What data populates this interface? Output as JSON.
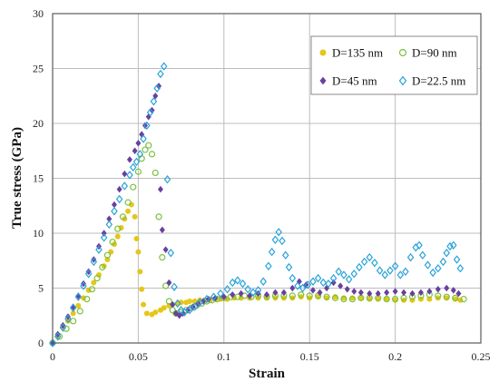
{
  "chart_data": {
    "type": "scatter",
    "xlabel": "Strain",
    "ylabel": "True stress (GPa)",
    "xlim": [
      0,
      0.25
    ],
    "ylim": [
      0,
      30
    ],
    "x_ticks": [
      "0",
      "0.05",
      "0.1",
      "0.15",
      "0.2",
      "0.25"
    ],
    "y_ticks": [
      "0",
      "5",
      "10",
      "15",
      "20",
      "25",
      "30"
    ],
    "grid": true,
    "legend_position": "top-right",
    "series": [
      {
        "name": "D=135 nm",
        "marker": "filled-circle",
        "color": "#e6c619",
        "points": [
          [
            0.0,
            0.0
          ],
          [
            0.003,
            0.7
          ],
          [
            0.006,
            1.4
          ],
          [
            0.009,
            2.0
          ],
          [
            0.012,
            2.7
          ],
          [
            0.015,
            3.4
          ],
          [
            0.018,
            4.1
          ],
          [
            0.021,
            4.8
          ],
          [
            0.024,
            5.5
          ],
          [
            0.027,
            6.2
          ],
          [
            0.03,
            7.0
          ],
          [
            0.032,
            7.6
          ],
          [
            0.034,
            8.3
          ],
          [
            0.036,
            9.0
          ],
          [
            0.038,
            9.7
          ],
          [
            0.04,
            10.5
          ],
          [
            0.042,
            11.3
          ],
          [
            0.044,
            12.0
          ],
          [
            0.046,
            12.6
          ],
          [
            0.048,
            11.5
          ],
          [
            0.049,
            9.5
          ],
          [
            0.05,
            8.3
          ],
          [
            0.051,
            6.5
          ],
          [
            0.052,
            4.9
          ],
          [
            0.053,
            3.5
          ],
          [
            0.055,
            2.7
          ],
          [
            0.058,
            2.6
          ],
          [
            0.06,
            2.8
          ],
          [
            0.063,
            3.0
          ],
          [
            0.065,
            3.2
          ],
          [
            0.068,
            3.4
          ],
          [
            0.07,
            3.5
          ],
          [
            0.073,
            3.6
          ],
          [
            0.075,
            3.7
          ],
          [
            0.078,
            3.7
          ],
          [
            0.08,
            3.8
          ],
          [
            0.083,
            3.8
          ],
          [
            0.086,
            3.9
          ],
          [
            0.089,
            3.9
          ],
          [
            0.092,
            3.9
          ],
          [
            0.095,
            4.0
          ],
          [
            0.098,
            4.0
          ],
          [
            0.102,
            4.0
          ],
          [
            0.106,
            4.1
          ],
          [
            0.11,
            4.1
          ],
          [
            0.115,
            4.1
          ],
          [
            0.12,
            4.1
          ],
          [
            0.125,
            4.1
          ],
          [
            0.13,
            4.1
          ],
          [
            0.135,
            4.1
          ],
          [
            0.14,
            4.1
          ],
          [
            0.145,
            4.2
          ],
          [
            0.15,
            4.1
          ],
          [
            0.155,
            4.2
          ],
          [
            0.16,
            4.1
          ],
          [
            0.165,
            4.2
          ],
          [
            0.17,
            4.1
          ],
          [
            0.175,
            4.1
          ],
          [
            0.18,
            4.1
          ],
          [
            0.185,
            4.0
          ],
          [
            0.19,
            4.0
          ],
          [
            0.195,
            4.0
          ],
          [
            0.2,
            3.9
          ],
          [
            0.205,
            3.9
          ],
          [
            0.21,
            3.9
          ],
          [
            0.215,
            4.0
          ],
          [
            0.22,
            4.0
          ],
          [
            0.225,
            4.1
          ],
          [
            0.23,
            4.1
          ],
          [
            0.235,
            4.0
          ],
          [
            0.238,
            3.9
          ]
        ]
      },
      {
        "name": "D=90 nm",
        "marker": "open-circle",
        "color": "#7ac143",
        "points": [
          [
            0.0,
            0.0
          ],
          [
            0.004,
            0.6
          ],
          [
            0.008,
            1.3
          ],
          [
            0.012,
            2.0
          ],
          [
            0.016,
            2.9
          ],
          [
            0.02,
            4.0
          ],
          [
            0.023,
            4.9
          ],
          [
            0.026,
            5.9
          ],
          [
            0.029,
            6.9
          ],
          [
            0.032,
            8.0
          ],
          [
            0.035,
            9.2
          ],
          [
            0.038,
            10.4
          ],
          [
            0.041,
            11.5
          ],
          [
            0.044,
            12.8
          ],
          [
            0.047,
            14.2
          ],
          [
            0.05,
            15.6
          ],
          [
            0.052,
            16.8
          ],
          [
            0.054,
            17.6
          ],
          [
            0.056,
            18.0
          ],
          [
            0.058,
            17.2
          ],
          [
            0.06,
            15.5
          ],
          [
            0.062,
            11.5
          ],
          [
            0.064,
            7.8
          ],
          [
            0.066,
            5.2
          ],
          [
            0.068,
            3.8
          ],
          [
            0.07,
            3.0
          ],
          [
            0.072,
            2.7
          ],
          [
            0.075,
            2.8
          ],
          [
            0.078,
            3.0
          ],
          [
            0.081,
            3.2
          ],
          [
            0.084,
            3.4
          ],
          [
            0.087,
            3.6
          ],
          [
            0.09,
            3.8
          ],
          [
            0.093,
            3.9
          ],
          [
            0.096,
            4.0
          ],
          [
            0.1,
            4.1
          ],
          [
            0.104,
            4.2
          ],
          [
            0.108,
            4.2
          ],
          [
            0.112,
            4.3
          ],
          [
            0.116,
            4.2
          ],
          [
            0.12,
            4.3
          ],
          [
            0.125,
            4.2
          ],
          [
            0.13,
            4.3
          ],
          [
            0.135,
            4.3
          ],
          [
            0.14,
            4.3
          ],
          [
            0.145,
            4.4
          ],
          [
            0.15,
            4.3
          ],
          [
            0.155,
            4.3
          ],
          [
            0.16,
            4.2
          ],
          [
            0.165,
            4.1
          ],
          [
            0.17,
            4.0
          ],
          [
            0.175,
            4.0
          ],
          [
            0.18,
            4.1
          ],
          [
            0.185,
            4.1
          ],
          [
            0.19,
            4.1
          ],
          [
            0.195,
            4.0
          ],
          [
            0.2,
            4.0
          ],
          [
            0.205,
            4.1
          ],
          [
            0.21,
            4.2
          ],
          [
            0.215,
            4.3
          ],
          [
            0.22,
            4.4
          ],
          [
            0.225,
            4.3
          ],
          [
            0.23,
            4.2
          ],
          [
            0.235,
            4.1
          ],
          [
            0.24,
            4.0
          ]
        ]
      },
      {
        "name": "D=45 nm",
        "marker": "filled-diamond",
        "color": "#6a3fa0",
        "points": [
          [
            0.0,
            0.0
          ],
          [
            0.003,
            0.8
          ],
          [
            0.006,
            1.6
          ],
          [
            0.009,
            2.4
          ],
          [
            0.012,
            3.3
          ],
          [
            0.015,
            4.3
          ],
          [
            0.018,
            5.4
          ],
          [
            0.021,
            6.5
          ],
          [
            0.024,
            7.6
          ],
          [
            0.027,
            8.8
          ],
          [
            0.03,
            10.0
          ],
          [
            0.033,
            11.3
          ],
          [
            0.036,
            12.6
          ],
          [
            0.039,
            14.0
          ],
          [
            0.042,
            15.4
          ],
          [
            0.045,
            16.7
          ],
          [
            0.048,
            17.5
          ],
          [
            0.05,
            18.2
          ],
          [
            0.052,
            19.0
          ],
          [
            0.054,
            19.8
          ],
          [
            0.056,
            20.6
          ],
          [
            0.058,
            21.2
          ],
          [
            0.06,
            22.5
          ],
          [
            0.062,
            23.4
          ],
          [
            0.063,
            14.0
          ],
          [
            0.064,
            10.3
          ],
          [
            0.066,
            8.5
          ],
          [
            0.068,
            5.5
          ],
          [
            0.07,
            3.5
          ],
          [
            0.072,
            2.7
          ],
          [
            0.074,
            2.5
          ],
          [
            0.076,
            2.7
          ],
          [
            0.079,
            3.0
          ],
          [
            0.082,
            3.3
          ],
          [
            0.085,
            3.6
          ],
          [
            0.088,
            3.8
          ],
          [
            0.091,
            4.0
          ],
          [
            0.095,
            4.1
          ],
          [
            0.1,
            4.2
          ],
          [
            0.105,
            4.4
          ],
          [
            0.11,
            4.5
          ],
          [
            0.115,
            4.3
          ],
          [
            0.12,
            4.5
          ],
          [
            0.125,
            4.4
          ],
          [
            0.13,
            4.6
          ],
          [
            0.135,
            4.6
          ],
          [
            0.14,
            5.0
          ],
          [
            0.144,
            5.6
          ],
          [
            0.148,
            5.3
          ],
          [
            0.152,
            4.8
          ],
          [
            0.156,
            4.6
          ],
          [
            0.16,
            5.0
          ],
          [
            0.164,
            5.5
          ],
          [
            0.168,
            5.2
          ],
          [
            0.172,
            4.9
          ],
          [
            0.176,
            4.7
          ],
          [
            0.18,
            4.6
          ],
          [
            0.185,
            4.5
          ],
          [
            0.19,
            4.5
          ],
          [
            0.195,
            4.6
          ],
          [
            0.2,
            4.7
          ],
          [
            0.205,
            4.6
          ],
          [
            0.21,
            4.5
          ],
          [
            0.215,
            4.6
          ],
          [
            0.22,
            4.7
          ],
          [
            0.225,
            4.9
          ],
          [
            0.23,
            5.0
          ],
          [
            0.234,
            4.8
          ],
          [
            0.237,
            4.5
          ]
        ]
      },
      {
        "name": "D=22.5 nm",
        "marker": "open-diamond",
        "color": "#29a3d9",
        "points": [
          [
            0.0,
            0.0
          ],
          [
            0.003,
            0.6
          ],
          [
            0.006,
            1.4
          ],
          [
            0.009,
            2.2
          ],
          [
            0.012,
            3.2
          ],
          [
            0.015,
            4.2
          ],
          [
            0.018,
            5.2
          ],
          [
            0.021,
            6.3
          ],
          [
            0.024,
            7.4
          ],
          [
            0.027,
            8.5
          ],
          [
            0.03,
            9.6
          ],
          [
            0.033,
            10.8
          ],
          [
            0.036,
            12.0
          ],
          [
            0.039,
            13.1
          ],
          [
            0.042,
            14.3
          ],
          [
            0.045,
            15.3
          ],
          [
            0.047,
            16.0
          ],
          [
            0.049,
            16.5
          ],
          [
            0.051,
            17.2
          ],
          [
            0.053,
            18.6
          ],
          [
            0.055,
            19.8
          ],
          [
            0.057,
            21.0
          ],
          [
            0.059,
            22.0
          ],
          [
            0.061,
            23.2
          ],
          [
            0.063,
            24.5
          ],
          [
            0.065,
            25.2
          ],
          [
            0.067,
            14.9
          ],
          [
            0.069,
            8.2
          ],
          [
            0.071,
            5.1
          ],
          [
            0.073,
            3.6
          ],
          [
            0.075,
            3.0
          ],
          [
            0.077,
            2.8
          ],
          [
            0.08,
            3.0
          ],
          [
            0.083,
            3.3
          ],
          [
            0.086,
            3.7
          ],
          [
            0.09,
            4.0
          ],
          [
            0.094,
            4.2
          ],
          [
            0.098,
            4.5
          ],
          [
            0.102,
            4.9
          ],
          [
            0.105,
            5.5
          ],
          [
            0.108,
            5.7
          ],
          [
            0.111,
            5.4
          ],
          [
            0.114,
            4.9
          ],
          [
            0.117,
            4.6
          ],
          [
            0.12,
            4.8
          ],
          [
            0.123,
            5.6
          ],
          [
            0.126,
            7.0
          ],
          [
            0.128,
            8.3
          ],
          [
            0.13,
            9.4
          ],
          [
            0.132,
            10.1
          ],
          [
            0.134,
            9.3
          ],
          [
            0.136,
            8.0
          ],
          [
            0.138,
            6.9
          ],
          [
            0.14,
            5.9
          ],
          [
            0.143,
            5.2
          ],
          [
            0.146,
            5.0
          ],
          [
            0.149,
            5.3
          ],
          [
            0.152,
            5.6
          ],
          [
            0.155,
            5.9
          ],
          [
            0.158,
            5.5
          ],
          [
            0.161,
            5.4
          ],
          [
            0.164,
            5.9
          ],
          [
            0.167,
            6.5
          ],
          [
            0.17,
            6.2
          ],
          [
            0.173,
            5.8
          ],
          [
            0.176,
            6.3
          ],
          [
            0.179,
            6.9
          ],
          [
            0.182,
            7.4
          ],
          [
            0.185,
            7.8
          ],
          [
            0.188,
            7.3
          ],
          [
            0.191,
            6.6
          ],
          [
            0.194,
            6.2
          ],
          [
            0.197,
            6.6
          ],
          [
            0.2,
            7.0
          ],
          [
            0.203,
            6.2
          ],
          [
            0.206,
            6.5
          ],
          [
            0.209,
            7.8
          ],
          [
            0.212,
            8.7
          ],
          [
            0.214,
            8.9
          ],
          [
            0.216,
            8.0
          ],
          [
            0.219,
            7.1
          ],
          [
            0.222,
            6.4
          ],
          [
            0.225,
            6.8
          ],
          [
            0.228,
            7.4
          ],
          [
            0.23,
            8.2
          ],
          [
            0.232,
            8.8
          ],
          [
            0.234,
            8.9
          ],
          [
            0.236,
            7.6
          ],
          [
            0.238,
            6.8
          ]
        ]
      }
    ]
  }
}
